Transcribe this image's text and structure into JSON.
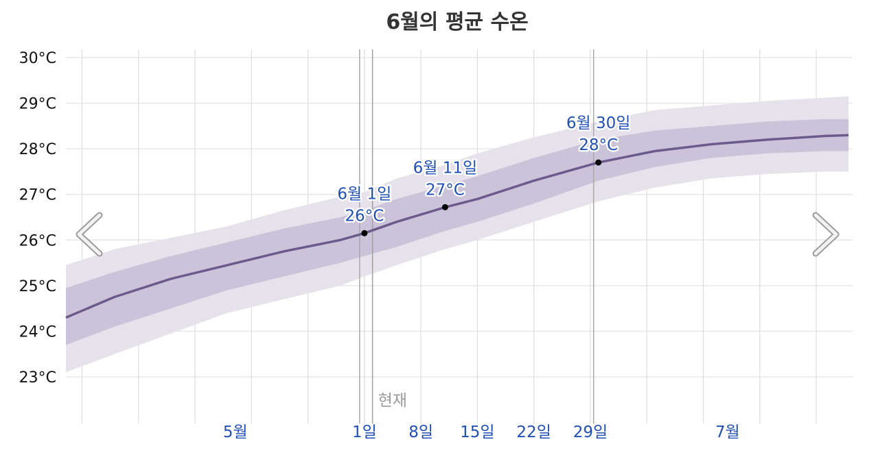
{
  "chart_data": {
    "type": "area",
    "title": "6월의 평균 수온",
    "xlabel": "",
    "ylabel": "",
    "ylim": [
      22,
      30
    ],
    "y_ticks": [
      "30°C",
      "29°C",
      "28°C",
      "27°C",
      "26°C",
      "25°C",
      "24°C",
      "23°C"
    ],
    "y_tick_values": [
      30,
      29,
      28,
      27,
      26,
      25,
      24,
      23
    ],
    "grid": true,
    "x_range_days": [
      "2024-04-25",
      "2024-07-31"
    ],
    "x_ticks": [
      {
        "label": "5월",
        "date": "2024-05-16"
      },
      {
        "label": "1일",
        "date": "2024-06-01"
      },
      {
        "label": "8일",
        "date": "2024-06-08"
      },
      {
        "label": "15일",
        "date": "2024-06-15"
      },
      {
        "label": "22일",
        "date": "2024-06-22"
      },
      {
        "label": "29일",
        "date": "2024-06-29"
      },
      {
        "label": "7월",
        "date": "2024-07-16"
      }
    ],
    "series": [
      {
        "role": "average",
        "x": [
          "2024-04-25",
          "2024-05-01",
          "2024-05-08",
          "2024-05-15",
          "2024-05-22",
          "2024-05-29",
          "2024-06-01",
          "2024-06-05",
          "2024-06-11",
          "2024-06-15",
          "2024-06-22",
          "2024-06-30",
          "2024-07-07",
          "2024-07-14",
          "2024-07-21",
          "2024-07-28",
          "2024-07-31"
        ],
        "y": [
          24.3,
          24.75,
          25.15,
          25.45,
          25.75,
          26.0,
          26.15,
          26.4,
          26.72,
          26.9,
          27.3,
          27.7,
          27.95,
          28.1,
          28.2,
          28.28,
          28.3
        ]
      },
      {
        "role": "25th-75th percentile band",
        "x": [
          "2024-04-25",
          "2024-05-01",
          "2024-05-08",
          "2024-05-15",
          "2024-05-22",
          "2024-05-29",
          "2024-06-01",
          "2024-06-05",
          "2024-06-11",
          "2024-06-15",
          "2024-06-22",
          "2024-06-30",
          "2024-07-07",
          "2024-07-14",
          "2024-07-21",
          "2024-07-28",
          "2024-07-31"
        ],
        "low": [
          23.7,
          24.1,
          24.5,
          24.9,
          25.2,
          25.5,
          25.65,
          25.85,
          26.2,
          26.4,
          26.8,
          27.3,
          27.6,
          27.8,
          27.9,
          27.95,
          27.95
        ],
        "high": [
          24.95,
          25.3,
          25.65,
          25.95,
          26.25,
          26.5,
          26.65,
          26.9,
          27.2,
          27.4,
          27.8,
          28.2,
          28.4,
          28.5,
          28.6,
          28.65,
          28.65
        ]
      },
      {
        "role": "10th-90th percentile band",
        "x": [
          "2024-04-25",
          "2024-05-01",
          "2024-05-08",
          "2024-05-15",
          "2024-05-22",
          "2024-05-29",
          "2024-06-01",
          "2024-06-05",
          "2024-06-11",
          "2024-06-15",
          "2024-06-22",
          "2024-06-30",
          "2024-07-07",
          "2024-07-14",
          "2024-07-21",
          "2024-07-28",
          "2024-07-31"
        ],
        "low": [
          23.1,
          23.5,
          23.95,
          24.4,
          24.7,
          25.0,
          25.2,
          25.45,
          25.8,
          26.0,
          26.4,
          26.85,
          27.15,
          27.35,
          27.45,
          27.5,
          27.5
        ],
        "high": [
          25.45,
          25.8,
          26.05,
          26.3,
          26.65,
          26.95,
          27.05,
          27.35,
          27.65,
          27.9,
          28.25,
          28.6,
          28.85,
          28.95,
          29.05,
          29.12,
          29.15
        ]
      }
    ],
    "annotations": [
      {
        "date_label": "6월 1일",
        "value_label": "26°C",
        "date": "2024-06-01",
        "value": 26.15
      },
      {
        "date_label": "6월 11일",
        "value_label": "27°C",
        "date": "2024-06-11",
        "value": 26.72
      },
      {
        "date_label": "6월 30일",
        "value_label": "28°C",
        "date": "2024-06-30",
        "value": 27.7
      }
    ],
    "now_marker": {
      "label": "현재",
      "date": "2024-06-02"
    },
    "colors": {
      "line": "#6b5a8b",
      "band_inner": "#cbc3d9",
      "band_outer": "#e6e2ec",
      "annotation_text": "#1f4fb4",
      "now_label": "#9a9a9a",
      "grid": "#e8e8e8"
    }
  },
  "nav": {
    "prev_icon": "chevron-left-icon",
    "next_icon": "chevron-right-icon"
  }
}
